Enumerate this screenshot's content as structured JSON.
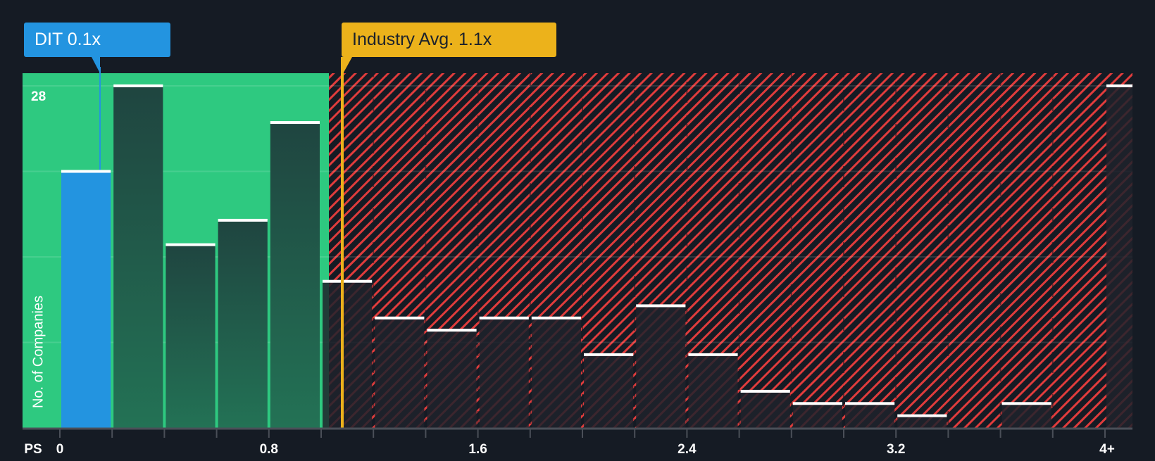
{
  "callouts": {
    "company": {
      "label": "DIT 0.1x",
      "color": "#2394e0"
    },
    "industry": {
      "label": "Industry Avg. 1.1x",
      "color": "#ecb21b"
    }
  },
  "axis": {
    "x_prefix": "PS",
    "y_title": "No. of Companies",
    "y_top_label": "28"
  },
  "colors": {
    "background": "#151b24",
    "undervalued_zone": "#2ec980",
    "overvalued_hatch": "#e03c3c",
    "company_bar": "#2394e0",
    "bar_cap": "#ffffff"
  },
  "chart_data": {
    "type": "bar",
    "title": "",
    "xlabel": "PS",
    "ylabel": "No. of Companies",
    "ylim": [
      0,
      28
    ],
    "x_ticks": [
      "0",
      "0.8",
      "1.6",
      "2.4",
      "3.2",
      "4+"
    ],
    "y_ticks": [
      28
    ],
    "bin_width": 0.2,
    "categories": [
      "0-0.2",
      "0.2-0.4",
      "0.4-0.6",
      "0.6-0.8",
      "0.8-1.0",
      "1.0-1.2",
      "1.2-1.4",
      "1.4-1.6",
      "1.6-1.8",
      "1.8-2.0",
      "2.0-2.2",
      "2.2-2.4",
      "2.4-2.6",
      "2.6-2.8",
      "2.8-3.0",
      "3.0-3.2",
      "3.2-3.4",
      "3.4-3.6",
      "3.6-3.8",
      "3.8-4.0",
      "4+"
    ],
    "values": [
      21,
      28,
      15,
      17,
      25,
      12,
      9,
      8,
      9,
      9,
      6,
      10,
      6,
      3,
      2,
      2,
      1,
      0,
      2,
      0,
      28
    ],
    "highlight_index": 0,
    "company_value": 0.1,
    "industry_avg": 1.1,
    "annotations": [
      "DIT 0.1x",
      "Industry Avg. 1.1x"
    ],
    "grid": true,
    "legend": "none"
  }
}
